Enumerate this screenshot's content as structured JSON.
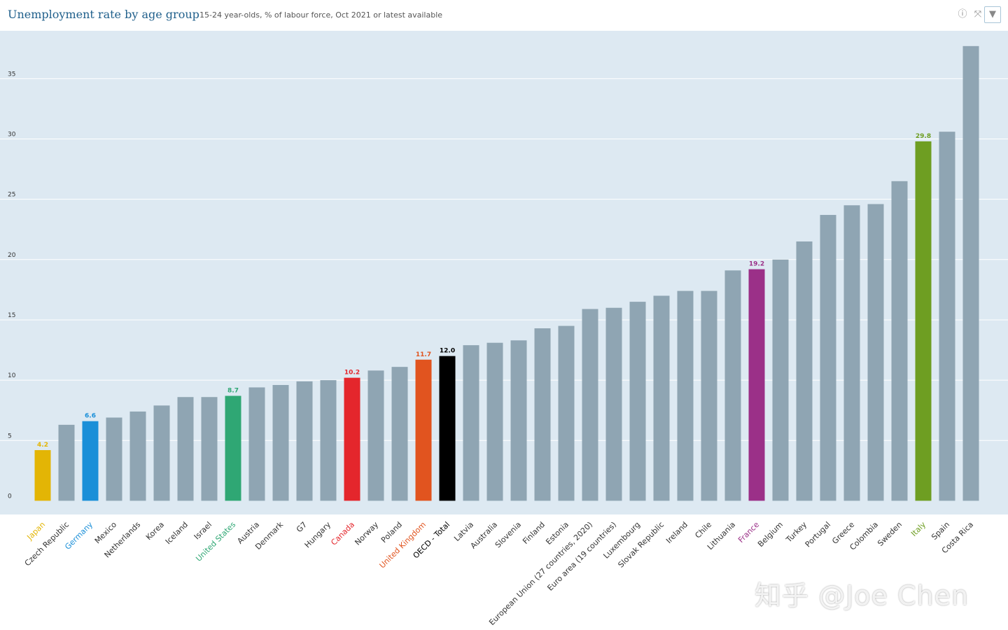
{
  "header": {
    "title": "Unemployment rate by age group",
    "subtitle": "15-24 year-olds, % of labour force, Oct 2021 or latest available",
    "icons": [
      "info-icon",
      "fullscreen-icon",
      "download-icon"
    ]
  },
  "watermark": "知乎 @Joe Chen",
  "chart_data": {
    "type": "bar",
    "title": "Unemployment rate by age group",
    "subtitle": "15-24 year-olds, % of labour force, Oct 2021 or latest available",
    "ylim": [
      0,
      38
    ],
    "yticks": [
      0,
      5,
      10,
      15,
      20,
      25,
      30,
      35
    ],
    "grid": true,
    "default_color": "#8fa5b3",
    "categories": [
      "Japan",
      "Czech Republic",
      "Germany",
      "Mexico",
      "Netherlands",
      "Korea",
      "Iceland",
      "Israel",
      "United States",
      "Austria",
      "Denmark",
      "G7",
      "Hungary",
      "Canada",
      "Norway",
      "Poland",
      "United Kingdom",
      "OECD - Total",
      "Latvia",
      "Australia",
      "Slovenia",
      "Finland",
      "Estonia",
      "European Union (27 countries, 2020)",
      "Euro area (19 countries)",
      "Luxembourg",
      "Slovak Republic",
      "Ireland",
      "Chile",
      "Lithuania",
      "France",
      "Belgium",
      "Turkey",
      "Portugal",
      "Greece",
      "Colombia",
      "Sweden",
      "Italy",
      "Spain",
      "Costa Rica"
    ],
    "values": [
      4.2,
      6.3,
      6.6,
      6.9,
      7.4,
      7.9,
      8.6,
      8.6,
      8.7,
      9.4,
      9.6,
      9.9,
      10.0,
      10.2,
      10.8,
      11.1,
      11.7,
      12.0,
      12.9,
      13.1,
      13.3,
      14.3,
      14.5,
      15.9,
      16.0,
      16.5,
      17.0,
      17.4,
      17.4,
      19.1,
      19.2,
      20.0,
      21.5,
      23.7,
      24.5,
      24.6,
      26.5,
      29.8,
      30.6,
      37.7
    ],
    "highlights": {
      "Japan": {
        "color": "#e3b505",
        "label": "4.2"
      },
      "Germany": {
        "color": "#1a8fd8",
        "label": "6.6"
      },
      "United States": {
        "color": "#2fa774",
        "label": "8.7"
      },
      "Canada": {
        "color": "#e4262c",
        "label": "10.2"
      },
      "United Kingdom": {
        "color": "#e1541f",
        "label": "11.7"
      },
      "OECD - Total": {
        "color": "#000000",
        "label": "12.0"
      },
      "France": {
        "color": "#9b3088",
        "label": "19.2"
      },
      "Italy": {
        "color": "#6e9e22",
        "label": "29.8"
      }
    }
  }
}
